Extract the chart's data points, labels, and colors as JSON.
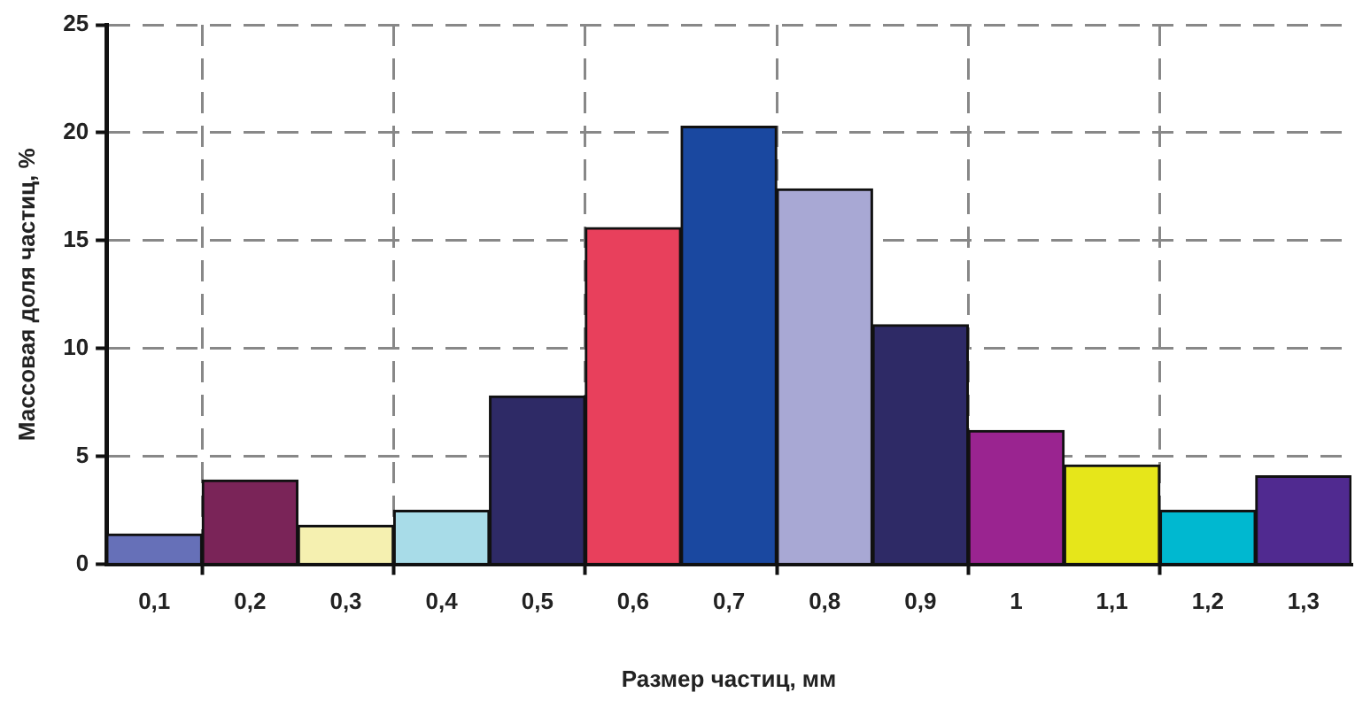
{
  "chart_data": {
    "type": "bar",
    "xlabel": "Размер частиц, мм",
    "ylabel": "Массовая доля частиц, %",
    "categories": [
      "0,1",
      "0,2",
      "0,3",
      "0,4",
      "0,5",
      "0,6",
      "0,7",
      "0,8",
      "0,9",
      "1",
      "1,1",
      "1,2",
      "1,3"
    ],
    "values": [
      1.4,
      3.9,
      1.8,
      2.5,
      7.8,
      15.6,
      20.3,
      17.4,
      11.1,
      6.2,
      4.6,
      2.5,
      4.1
    ],
    "colors": [
      "#6670b8",
      "#7a2458",
      "#f5f0b0",
      "#a8dce8",
      "#2e2a66",
      "#e8405c",
      "#1a48a0",
      "#a8a8d4",
      "#2e2a66",
      "#9a2490",
      "#e6e61a",
      "#00b8d0",
      "#502a90"
    ],
    "ylim": [
      0,
      25
    ],
    "yticks": [
      0,
      5,
      10,
      15,
      20,
      25
    ],
    "grid": true,
    "legend": false
  }
}
